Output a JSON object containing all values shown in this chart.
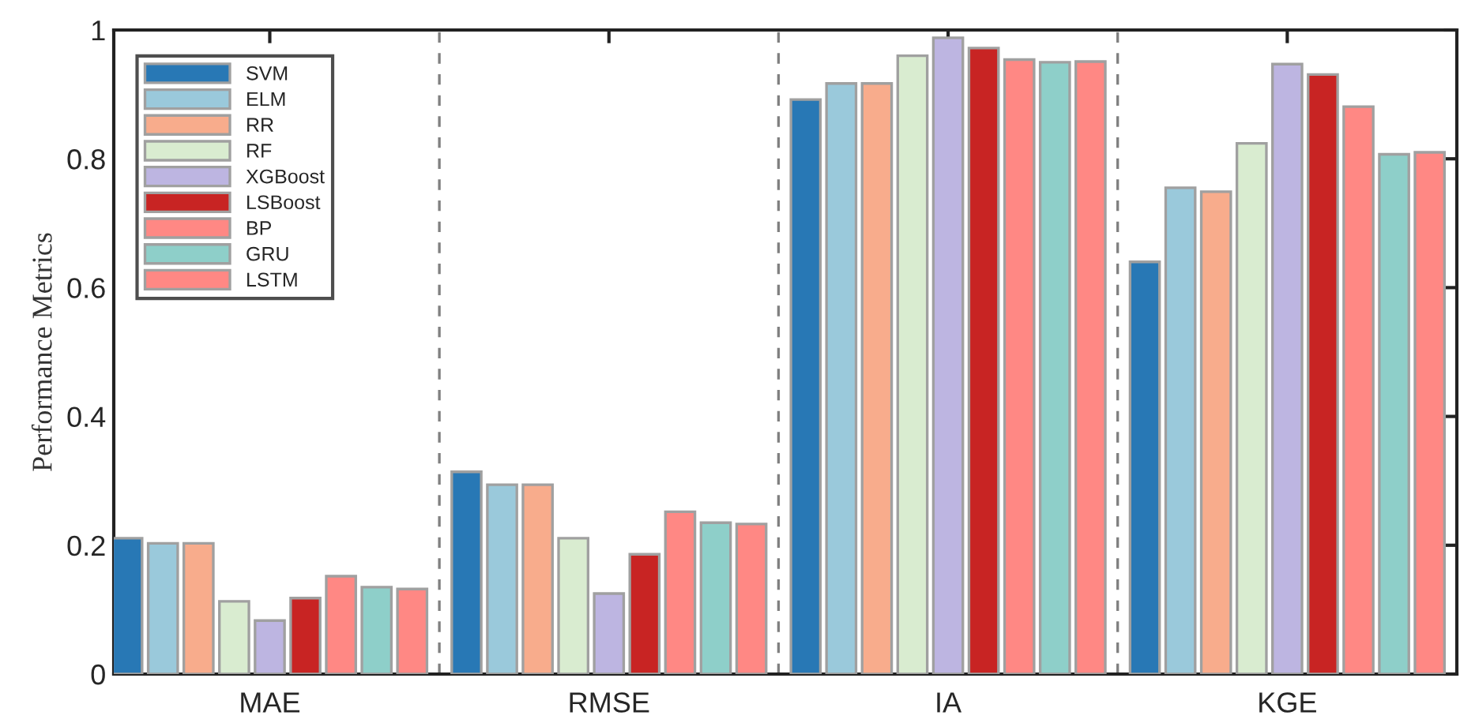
{
  "chart_data": {
    "type": "bar",
    "ylabel": "Performance Metrics",
    "categories": [
      "MAE",
      "RMSE",
      "IA",
      "KGE"
    ],
    "ylim": [
      0,
      1
    ],
    "yticks": [
      0,
      0.2,
      0.4,
      0.6,
      0.8,
      1
    ],
    "series": [
      {
        "name": "SVM",
        "color": "#2878b5",
        "values": [
          0.211,
          0.314,
          0.892,
          0.64
        ]
      },
      {
        "name": "ELM",
        "color": "#9ac9db",
        "values": [
          0.203,
          0.294,
          0.917,
          0.755
        ]
      },
      {
        "name": "RR",
        "color": "#f8ac8c",
        "values": [
          0.203,
          0.294,
          0.917,
          0.749
        ]
      },
      {
        "name": "RF",
        "color": "#d9ecd0",
        "values": [
          0.113,
          0.211,
          0.96,
          0.824
        ]
      },
      {
        "name": "XGBoost",
        "color": "#bdb5e1",
        "values": [
          0.083,
          0.125,
          0.988,
          0.947
        ]
      },
      {
        "name": "LSBoost",
        "color": "#c82423",
        "values": [
          0.118,
          0.186,
          0.972,
          0.931
        ]
      },
      {
        "name": "BP",
        "color": "#ff8884",
        "values": [
          0.152,
          0.252,
          0.954,
          0.881
        ]
      },
      {
        "name": "GRU",
        "color": "#8ecfc9",
        "values": [
          0.135,
          0.235,
          0.95,
          0.807
        ]
      },
      {
        "name": "LSTM",
        "color": "#ff8884",
        "values": [
          0.132,
          0.233,
          0.951,
          0.81
        ]
      }
    ],
    "grid": false,
    "legend": "top left"
  }
}
